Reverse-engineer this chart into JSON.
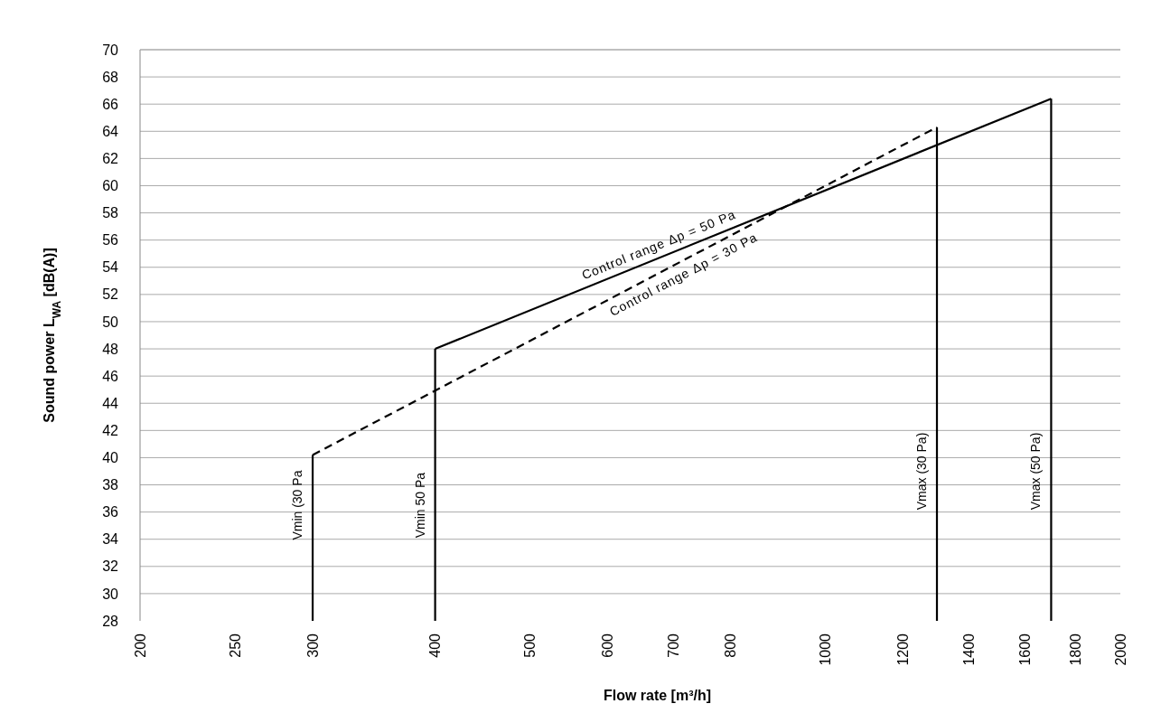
{
  "chart_data": {
    "type": "line",
    "xlabel": "Flow rate  [m³/h]",
    "ylabel": "Sound power L$_{WA}$  [dB(A)]",
    "log": "x",
    "grid": "y",
    "xlim": [
      200,
      2000
    ],
    "xticks": [
      200,
      250,
      300,
      400,
      500,
      600,
      700,
      800,
      1000,
      1200,
      1400,
      1600,
      1800,
      2000
    ],
    "ylim": [
      28,
      70
    ],
    "yticks": [
      28,
      30,
      32,
      34,
      36,
      38,
      40,
      42,
      44,
      46,
      48,
      50,
      52,
      54,
      56,
      58,
      60,
      62,
      64,
      66,
      68,
      70
    ],
    "series": [
      {
        "color": "#000000",
        "line_style": "dashed",
        "x": [
          300,
          1300
        ],
        "values": [
          40.2,
          64.3
        ]
      },
      {
        "color": "#000000",
        "line_style": "solid",
        "x": [
          400,
          1700
        ],
        "values": [
          48,
          66.4
        ]
      },
      {
        "color": "#000000",
        "line_style": "solid",
        "x": [
          300,
          300
        ],
        "values": [
          28,
          40.2
        ]
      },
      {
        "color": "#000000",
        "line_style": "solid",
        "x": [
          400,
          400
        ],
        "values": [
          28,
          48
        ]
      },
      {
        "color": "#000000",
        "line_style": "solid",
        "x": [
          1300,
          1300
        ],
        "values": [
          28,
          64.3
        ]
      },
      {
        "color": "#000000",
        "line_style": "solid",
        "x": [
          1700,
          1700
        ],
        "values": [
          28,
          66.4
        ]
      }
    ],
    "annotations": [
      {
        "text": "Control range   Δp = 50 Pa",
        "x": 684,
        "y": 54.8
      },
      {
        "text": "Control range   Δp = 30 Pa",
        "x": 707,
        "y": 54.3
      },
      {
        "text": "Vmin (30 Pa",
        "x": 300,
        "y": 36.5
      },
      {
        "text": "Vmin  50 Pa",
        "x": 400,
        "y": 36.5
      },
      {
        "text": "Vmax (30 Pa)",
        "x": 1300,
        "y": 39
      },
      {
        "text": "Vmax (50 Pa)",
        "x": 1700,
        "y": 39
      }
    ]
  }
}
